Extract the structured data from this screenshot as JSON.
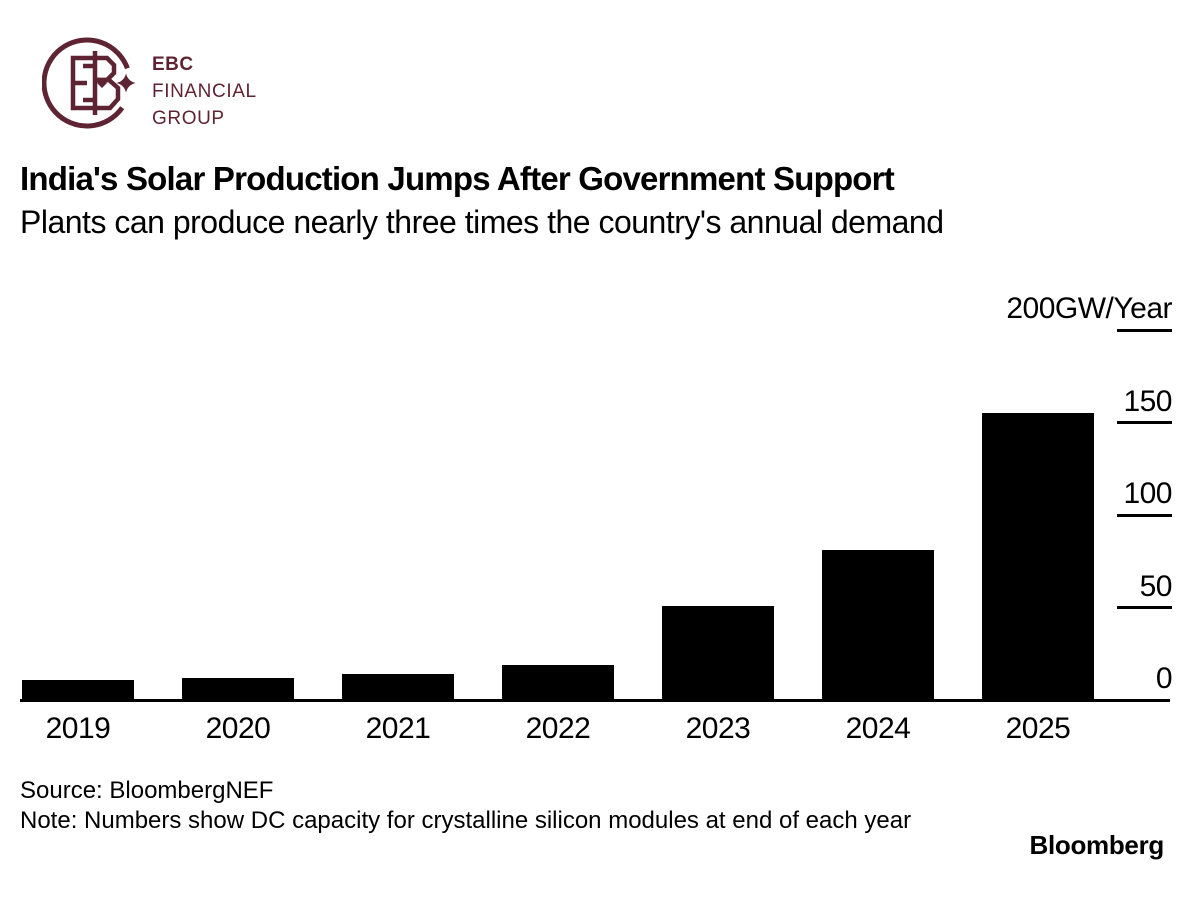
{
  "brand_logo": {
    "name": "EBC Financial Group",
    "line1": "EBC",
    "line2": "FINANCIAL",
    "line3": "GROUP",
    "color": "#5e2433"
  },
  "header": {
    "title": "India's Solar Production Jumps After Government Support",
    "subtitle": "Plants can produce nearly three times the country's annual demand"
  },
  "chart_data": {
    "type": "bar",
    "title": "India's Solar Production Jumps After Government Support",
    "subtitle": "Plants can produce nearly three times the country's annual demand",
    "categories": [
      "2019",
      "2020",
      "2021",
      "2022",
      "2023",
      "2024",
      "2025"
    ],
    "values": [
      11,
      12,
      14,
      19,
      51,
      81,
      155
    ],
    "unit": "GW/Year",
    "ylabel": "200GW/Year",
    "ylim": [
      0,
      200
    ],
    "yticks": [
      200,
      150,
      100,
      50,
      0
    ],
    "ytick_labels": [
      "200GW/Year",
      "150",
      "100",
      "50",
      "0"
    ],
    "bar_color": "#000000",
    "axis_position": "right",
    "grid": false,
    "legend": "none"
  },
  "footer": {
    "source": "Source: BloombergNEF",
    "note": "Note: Numbers show DC capacity for crystalline silicon modules at end of each year",
    "watermark": "Bloomberg"
  }
}
